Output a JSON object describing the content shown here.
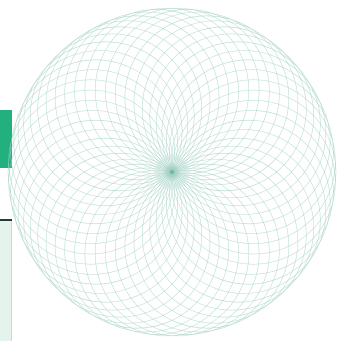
{
  "colors": {
    "header_accent": "#21b07e",
    "rule": "#263a3a",
    "panel_fill": "#e4f3ec",
    "curve_stroke": "#9fcfc2",
    "center_dot": "#6fb8a3"
  },
  "spirograph": {
    "petal_count": 50
  }
}
